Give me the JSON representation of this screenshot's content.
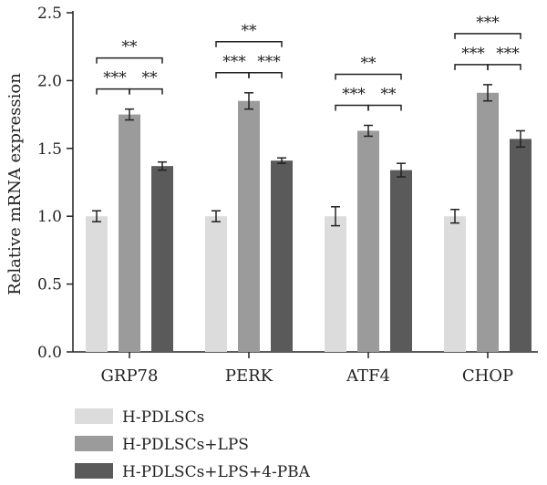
{
  "chart_data": {
    "type": "bar",
    "categories": [
      "GRP78",
      "PERK",
      "ATF4",
      "CHOP"
    ],
    "series": [
      {
        "name": "H-PDLSCs",
        "values": [
          1.0,
          1.0,
          1.0,
          1.0
        ],
        "errors": [
          0.04,
          0.04,
          0.07,
          0.05
        ],
        "color": "#dcdcdc"
      },
      {
        "name": "H-PDLSCs+LPS",
        "values": [
          1.75,
          1.85,
          1.63,
          1.91
        ],
        "errors": [
          0.04,
          0.06,
          0.04,
          0.06
        ],
        "color": "#9b9b9b"
      },
      {
        "name": "H-PDLSCs+LPS+4-PBA",
        "values": [
          1.37,
          1.41,
          1.34,
          1.57
        ],
        "errors": [
          0.03,
          0.02,
          0.05,
          0.06
        ],
        "color": "#5a5a5a"
      }
    ],
    "ylabel": "Relative mRNA expression",
    "ylim": [
      0,
      2.5
    ],
    "yticks": [
      "0.0",
      "0.5",
      "1.0",
      "1.5",
      "2.0",
      "2.5"
    ],
    "legend_position": "bottom-left",
    "significance": [
      {
        "category": "GRP78",
        "pair": [
          0,
          1
        ],
        "label": "***",
        "level": 1
      },
      {
        "category": "GRP78",
        "pair": [
          1,
          2
        ],
        "label": "**",
        "level": 1
      },
      {
        "category": "GRP78",
        "pair": [
          0,
          2
        ],
        "label": "**",
        "level": 2
      },
      {
        "category": "PERK",
        "pair": [
          0,
          1
        ],
        "label": "***",
        "level": 1
      },
      {
        "category": "PERK",
        "pair": [
          1,
          2
        ],
        "label": "***",
        "level": 1
      },
      {
        "category": "PERK",
        "pair": [
          0,
          2
        ],
        "label": "**",
        "level": 2
      },
      {
        "category": "ATF4",
        "pair": [
          0,
          1
        ],
        "label": "***",
        "level": 1
      },
      {
        "category": "ATF4",
        "pair": [
          1,
          2
        ],
        "label": "**",
        "level": 1
      },
      {
        "category": "ATF4",
        "pair": [
          0,
          2
        ],
        "label": "**",
        "level": 2
      },
      {
        "category": "CHOP",
        "pair": [
          0,
          1
        ],
        "label": "***",
        "level": 1
      },
      {
        "category": "CHOP",
        "pair": [
          1,
          2
        ],
        "label": "***",
        "level": 1
      },
      {
        "category": "CHOP",
        "pair": [
          0,
          2
        ],
        "label": "***",
        "level": 2
      }
    ]
  }
}
